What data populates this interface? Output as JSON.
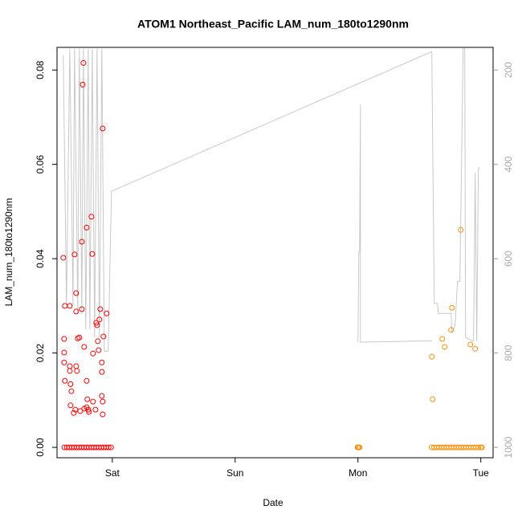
{
  "chart_data": {
    "type": "scatter",
    "title": "ATOM1 Northeast_Pacific LAM_num_180to1290nm",
    "x_label": "Date",
    "y_label": "LAM_num_180to1290nm",
    "xlim": [
      0.55,
      4.1
    ],
    "xticks": [
      {
        "value": 1,
        "label": "Sat"
      },
      {
        "value": 2,
        "label": "Sun"
      },
      {
        "value": 3,
        "label": "Mon"
      },
      {
        "value": 4,
        "label": "Tue"
      }
    ],
    "ylim": [
      -0.0022,
      0.0848
    ],
    "yticks": [
      {
        "value": 0,
        "label": "0.00"
      },
      {
        "value": 0.02,
        "label": "0.02"
      },
      {
        "value": 0.04,
        "label": "0.04"
      },
      {
        "value": 0.06,
        "label": "0.06"
      },
      {
        "value": 0.08,
        "label": "0.08"
      }
    ],
    "y2lim": [
      1022,
      152
    ],
    "y2ticks": [
      200,
      400,
      600,
      800,
      1000
    ],
    "series": [
      {
        "color": "#ff0000",
        "x": [
          0.601,
          0.614,
          0.608,
          0.608,
          0.608,
          0.614,
          0.654,
          0.654,
          0.654,
          0.66,
          0.667,
          0.66,
          0.693,
          0.706,
          0.706,
          0.706,
          0.712,
          0.719,
          0.732,
          0.752,
          0.752,
          0.759,
          0.765,
          0.771,
          0.791,
          0.791,
          0.797,
          0.791,
          0.804,
          0.83,
          0.837,
          0.843,
          0.869,
          0.876,
          0.882,
          0.889,
          0.895,
          0.902,
          0.922,
          0.928,
          0.915,
          0.915,
          0.915,
          0.922,
          0.922,
          0.954,
          0.699,
          0.739,
          0.771,
          0.81,
          0.843,
          0.863,
          0.686,
          0.61,
          0.63,
          0.65,
          0.67,
          0.69,
          0.71,
          0.73,
          0.75,
          0.77,
          0.79,
          0.81,
          0.83,
          0.85,
          0.87,
          0.89,
          0.91,
          0.93,
          0.95,
          0.97,
          0.99
        ],
        "values": [
          0.0402,
          0.03,
          0.023,
          0.0201,
          0.018,
          0.0141,
          0.03,
          0.0172,
          0.0162,
          0.0134,
          0.0119,
          0.0089,
          0.0409,
          0.0327,
          0.0288,
          0.0172,
          0.0162,
          0.0231,
          0.0233,
          0.0293,
          0.0436,
          0.0769,
          0.0815,
          0.0213,
          0.0466,
          0.0141,
          0.0102,
          0.0085,
          0.008,
          0.0489,
          0.041,
          0.0199,
          0.0264,
          0.0259,
          0.0225,
          0.0206,
          0.0271,
          0.0293,
          0.0676,
          0.0235,
          0.018,
          0.016,
          0.0109,
          0.0097,
          0.007,
          0.0284,
          0.008,
          0.0077,
          0.0082,
          0.0075,
          0.0097,
          0.008,
          0.0073,
          0,
          0,
          0,
          0,
          0,
          0,
          0,
          0,
          0,
          0,
          0,
          0,
          0,
          0,
          0,
          0,
          0,
          0,
          0,
          0
        ]
      },
      {
        "color": "#ff8c00",
        "x": [
          3.601,
          3.608,
          3.686,
          3.706,
          3.758,
          3.765,
          3.837,
          3.915,
          3.954,
          2.997,
          3.0,
          3.007,
          3.013,
          3.6,
          3.62,
          3.64,
          3.66,
          3.68,
          3.7,
          3.72,
          3.74,
          3.76,
          3.78,
          3.8,
          3.82,
          3.84,
          3.86,
          3.88,
          3.9,
          3.92,
          3.94,
          3.96,
          3.98,
          4.0,
          4.01
        ],
        "values": [
          0.0192,
          0.0102,
          0.023,
          0.0213,
          0.0249,
          0.0296,
          0.0461,
          0.0218,
          0.0209,
          0,
          0,
          0,
          0,
          0,
          0,
          0,
          0,
          0,
          0,
          0,
          0,
          0,
          0,
          0,
          0,
          0,
          0,
          0,
          0,
          0,
          0,
          0,
          0,
          0,
          0
        ]
      },
      {
        "color": "#c8c8c8",
        "axis": "y2",
        "line": true,
        "x": [
          0.601,
          0.627,
          0.654,
          0.68,
          0.693,
          0.719,
          0.732,
          0.752,
          0.765,
          0.784,
          0.804,
          0.817,
          0.837,
          0.856,
          0.876,
          0.895,
          0.915,
          0.935,
          0.961,
          0.967,
          0.993,
          3.601,
          3.621,
          3.647,
          3.654,
          3.758,
          3.765,
          3.791,
          3.81,
          3.83,
          3.856,
          3.869,
          3.876,
          3.941,
          3.954,
          3.967,
          3.98,
          3.993,
          null,
          3.0,
          3.007,
          3.013,
          3.02,
          3.02,
          3.601
        ],
        "values": [
          169,
          699,
          155,
          699,
          155,
          716,
          155,
          716,
          155,
          750,
          155,
          750,
          155,
          767,
          155,
          767,
          155,
          796,
          796,
          796,
          457,
          161,
          695,
          695,
          716,
          716,
          757,
          741,
          648,
          648,
          155,
          155,
          767,
          775,
          418,
          775,
          409,
          406,
          null,
          777,
          585,
          585,
          273,
          777,
          774
        ]
      }
    ]
  }
}
